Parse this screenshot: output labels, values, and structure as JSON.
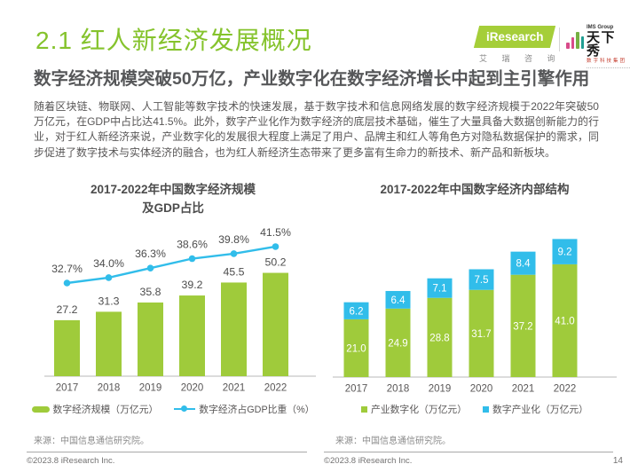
{
  "page": {
    "background": "#FFFFFF"
  },
  "header": {
    "title": "2.1 红人新经济发展概况",
    "subtitle": "数字经济规模突破50万亿，产业数字化在数字经济增长中起到主引擎作用",
    "iresearch_logo": {
      "badge": "iResearch",
      "caption": "艾 瑞 咨 询"
    },
    "tianxiaxiu_logo": {
      "group": "IMS Group",
      "name": "天下秀",
      "caption": "数字科技集团"
    }
  },
  "intro_paragraph": "随着区块链、物联网、人工智能等数字技术的快速发展，基于数字技术和信息网络发展的数字经济规模于2022年突破50万亿元，在GDP中占比达41.5%。此外，数字产业化作为数字经济的底层技术基础，催生了大量具备大数据创新能力的行业，对于红人新经济来说，产业数字化的发展很大程度上满足了用户、品牌主和红人等角色方对隐私数据保护的需求，同步促进了数字技术与实体经济的融合，也为红人新经济生态带来了更多富有生命力的新技术、新产品和新板块。",
  "colors": {
    "green": "#9FCB3B",
    "blue": "#31BDEA",
    "title_green": "#85C32C",
    "dark_text": "#595757",
    "label_text": "#4C4C4C",
    "axis_gray": "#C8C8C8"
  },
  "chart_data": [
    {
      "type": "bar+line",
      "title": "2017-2022年中国数字经济规模及GDP占比",
      "title_lines": [
        "2017-2022年中国数字经济规模",
        "及GDP占比"
      ],
      "categories": [
        "2017",
        "2018",
        "2019",
        "2020",
        "2021",
        "2022"
      ],
      "grid": false,
      "legend_position": "bottom",
      "series": [
        {
          "name": "数字经济规模（万亿元）",
          "type": "bar",
          "values": [
            27.2,
            31.3,
            35.8,
            39.2,
            45.5,
            50.2
          ],
          "labels": [
            "27.2",
            "31.3",
            "35.8",
            "39.2",
            "45.5",
            "50.2"
          ],
          "color": "#9FCB3B"
        },
        {
          "name": "数字经济占GDP比重（%）",
          "type": "line",
          "values": [
            32.7,
            34.0,
            36.3,
            38.6,
            39.8,
            41.5
          ],
          "labels": [
            "32.7%",
            "34.0%",
            "36.3%",
            "38.6%",
            "39.8%",
            "41.5%"
          ],
          "color": "#31BDEA"
        }
      ],
      "source": "来源：中国信息通信研究院。"
    },
    {
      "type": "stacked-bar",
      "title": "2017-2022年中国数字经济内部结构",
      "categories": [
        "2017",
        "2018",
        "2019",
        "2020",
        "2021",
        "2022"
      ],
      "grid": false,
      "legend_position": "bottom",
      "series": [
        {
          "name": "产业数字化（万亿元）",
          "values": [
            21.0,
            24.9,
            28.8,
            31.7,
            37.2,
            41.0
          ],
          "labels": [
            "21.0",
            "24.9",
            "28.8",
            "31.7",
            "37.2",
            "41.0"
          ],
          "color": "#9FCB3B"
        },
        {
          "name": "数字产业化（万亿元）",
          "values": [
            6.2,
            6.4,
            7.1,
            7.5,
            8.4,
            9.2
          ],
          "labels": [
            "6.2",
            "6.4",
            "7.1",
            "7.5",
            "8.4",
            "9.2"
          ],
          "color": "#31BDEA"
        }
      ],
      "source": "来源：中国信息通信研究院。"
    }
  ],
  "footer": {
    "copyright": "©2023.8 iResearch Inc.",
    "page_number": "14"
  }
}
